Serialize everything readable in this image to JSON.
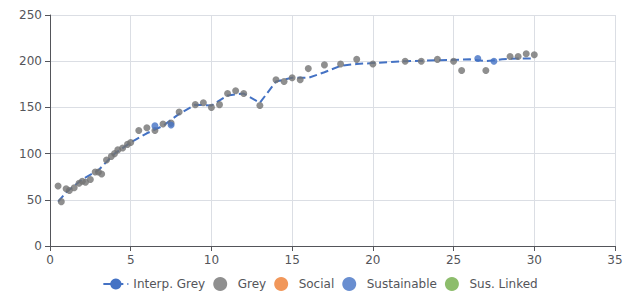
{
  "chart_data": {
    "type": "scatter",
    "series": [
      {
        "name": "Interp. Grey",
        "type": "line",
        "line_style": "dashed",
        "color": "#4472c4",
        "x": [
          0.5,
          1.0,
          2.0,
          3.0,
          4.0,
          5.0,
          6.0,
          7.0,
          8.0,
          9.0,
          10.0,
          11.0,
          12.0,
          13.0,
          14.0,
          15.0,
          16.0,
          17.0,
          18.0,
          19.0,
          20.0,
          22.0,
          24.0,
          26.0,
          27.0,
          28.0,
          29.0,
          30.0
        ],
        "values": [
          48,
          58,
          72,
          82,
          100,
          112,
          122,
          130,
          143,
          153,
          152,
          163,
          165,
          155,
          178,
          182,
          182,
          188,
          195,
          197,
          198,
          200,
          201,
          202,
          200,
          202,
          203,
          203
        ]
      },
      {
        "name": "Grey",
        "type": "scatter",
        "color": "#737373",
        "x": [
          0.5,
          0.7,
          1.0,
          1.2,
          1.5,
          1.8,
          2.0,
          2.2,
          2.5,
          2.8,
          3.0,
          3.2,
          3.5,
          3.8,
          4.0,
          4.2,
          4.5,
          4.8,
          5.0,
          5.5,
          6.0,
          6.5,
          7.0,
          7.5,
          8.0,
          9.0,
          9.5,
          10.0,
          10.5,
          11.0,
          11.5,
          12.0,
          13.0,
          14.0,
          14.5,
          15.0,
          15.5,
          16.0,
          17.0,
          18.0,
          19.0,
          20.0,
          22.0,
          23.0,
          24.0,
          25.0,
          25.5,
          27.0,
          28.5,
          29.0,
          29.5,
          30.0
        ],
        "values": [
          65,
          48,
          62,
          60,
          63,
          68,
          70,
          69,
          72,
          80,
          80,
          78,
          93,
          97,
          100,
          104,
          106,
          110,
          112,
          125,
          128,
          125,
          132,
          133,
          145,
          153,
          155,
          150,
          153,
          165,
          168,
          165,
          152,
          180,
          178,
          182,
          180,
          192,
          196,
          197,
          202,
          197,
          200,
          200,
          202,
          200,
          190,
          190,
          205,
          205,
          208,
          207
        ]
      },
      {
        "name": "Social",
        "type": "scatter",
        "color": "#ed7d31",
        "x": [],
        "values": []
      },
      {
        "name": "Sustainable",
        "type": "scatter",
        "color": "#4472c4",
        "x": [
          6.5,
          7.5,
          26.5,
          27.5
        ],
        "values": [
          130,
          131,
          203,
          200
        ]
      },
      {
        "name": "Sus. Linked",
        "type": "scatter",
        "color": "#70ad47",
        "x": [],
        "values": []
      }
    ],
    "xlim": [
      0,
      35
    ],
    "ylim": [
      0,
      250
    ],
    "xticks": [
      0,
      5,
      10,
      15,
      20,
      25,
      30,
      35
    ],
    "yticks": [
      0,
      50,
      100,
      150,
      200,
      250
    ],
    "grid": true,
    "legend": "bottom"
  }
}
